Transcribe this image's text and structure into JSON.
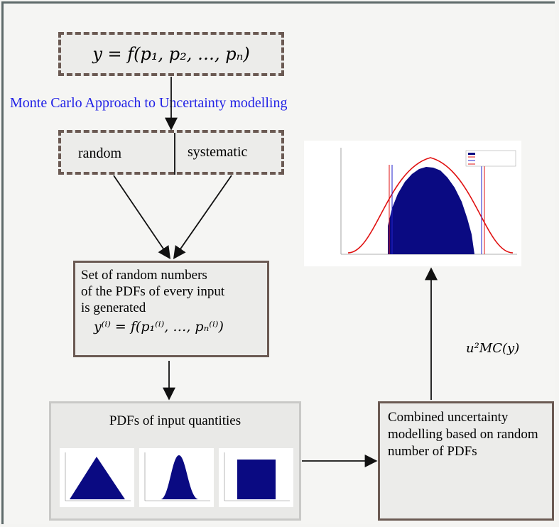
{
  "formula_top": "y = f(p₁, p₂, …, pₙ)",
  "approach_label": "Monte Carlo Approach to Uncertainty modelling",
  "split": {
    "left": "random",
    "right": "systematic"
  },
  "generation": {
    "lines": [
      "Set of random numbers",
      "of the PDFs of every input",
      "is generated"
    ],
    "formula": "y⁽ⁱ⁾ = f(p₁⁽ⁱ⁾, …, pₙ⁽ⁱ⁾)"
  },
  "pdfs": {
    "title": "PDFs of input quantities",
    "thumbnails": [
      "triangular-pdf",
      "gaussian-pdf",
      "uniform-pdf"
    ]
  },
  "combined": {
    "lines": [
      "Combined uncertainty",
      "modelling based on random",
      "number of PDFs"
    ]
  },
  "umc_label": "u²MC(y)",
  "result_plot": {
    "type": "histogram",
    "fill_color": "#0a0a82",
    "curve_color": "#e01010"
  },
  "colors": {
    "approach_text": "#2121e6",
    "box_border": "#6b5a53",
    "pdf_fill": "#0a0a82"
  }
}
